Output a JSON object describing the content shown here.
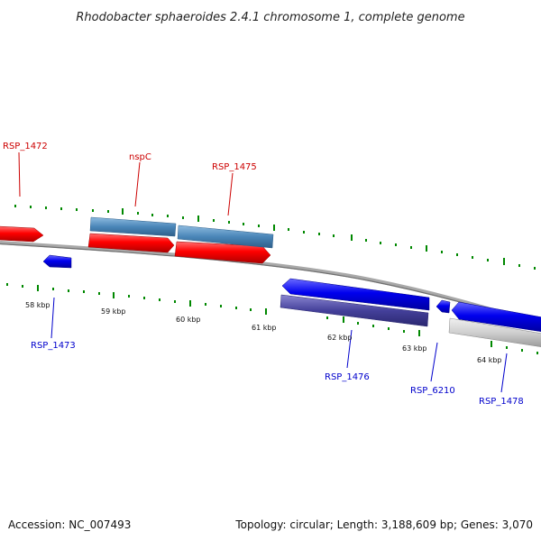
{
  "title": "Rhodobacter sphaeroides 2.4.1 chromosome 1, complete genome",
  "footer": {
    "accession": "Accession: NC_007493",
    "summary": "Topology: circular; Length: 3,188,609 bp; Genes: 3,070"
  },
  "colors": {
    "forward_label": "#cc0000",
    "reverse_label": "#0000cc",
    "forward_gene": "#ff0000",
    "reverse_gene": "#0000ee",
    "rna_steelblue": "#4a86b8",
    "rna_purple": "#44409a",
    "pseudo_gray": "#c8c8c8",
    "backbone": "#808080",
    "tick": "#008800"
  },
  "gene_labels": [
    {
      "id": "RSP_1472",
      "text": "RSP_1472",
      "strand": "forward"
    },
    {
      "id": "nspC",
      "text": "nspC",
      "strand": "forward"
    },
    {
      "id": "RSP_1475",
      "text": "RSP_1475",
      "strand": "forward"
    },
    {
      "id": "RSP_1473",
      "text": "RSP_1473",
      "strand": "reverse"
    },
    {
      "id": "RSP_1476",
      "text": "RSP_1476",
      "strand": "reverse"
    },
    {
      "id": "RSP_6210",
      "text": "RSP_6210",
      "strand": "reverse"
    },
    {
      "id": "RSP_1478",
      "text": "RSP_1478",
      "strand": "reverse"
    }
  ],
  "scale_labels": [
    "58 kbp",
    "59 kbp",
    "60 kbp",
    "61 kbp",
    "62 kbp",
    "63 kbp",
    "64 kbp"
  ]
}
